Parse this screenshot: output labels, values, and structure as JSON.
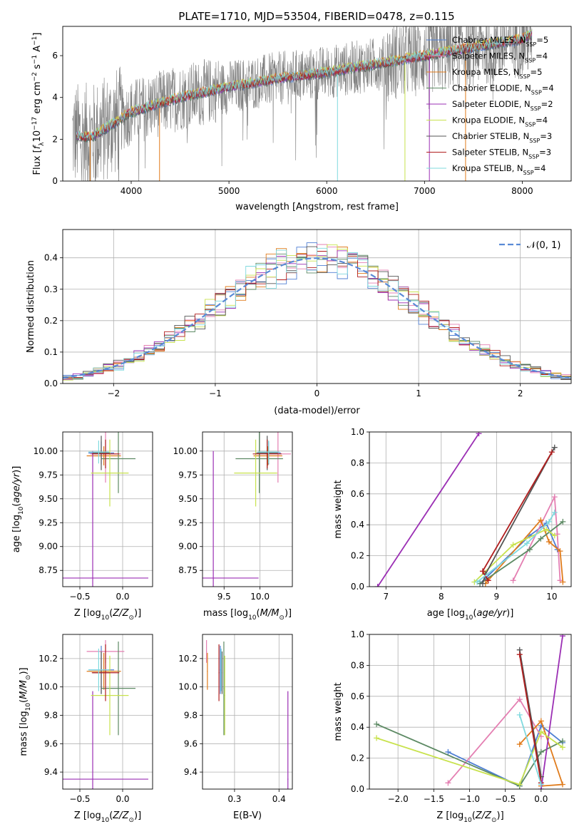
{
  "figure": {
    "title": "PLATE=1710, MJD=53504, FIBERID=0478, z=0.115"
  },
  "colors": {
    "Chabrier MILES": "#4f7fd3",
    "Salpeter MILES": "#e47fb2",
    "Kroupa MILES": "#e07b1b",
    "Chabrier ELODIE": "#5d8a64",
    "Salpeter ELODIE": "#9b2fb4",
    "Kroupa ELODIE": "#c8e24d",
    "Chabrier STELIB": "#555555",
    "Salpeter STELIB": "#b11e1e",
    "Kroupa STELIB": "#7fd9de",
    "data": "#808080",
    "normal": "#5a8ad6"
  },
  "legend": {
    "spectrum": [
      {
        "key": "Chabrier MILES",
        "imf": "Chabrier MILES, N",
        "n": "=5"
      },
      {
        "key": "Salpeter MILES",
        "imf": "Salpeter MILES, N",
        "n": "=4"
      },
      {
        "key": "Kroupa MILES",
        "imf": "Kroupa MILES, N",
        "n": "=5"
      },
      {
        "key": "Chabrier ELODIE",
        "imf": "Chabrier ELODIE, N",
        "n": "=4"
      },
      {
        "key": "Salpeter ELODIE",
        "imf": "Salpeter ELODIE, N",
        "n": "=2"
      },
      {
        "key": "Kroupa ELODIE",
        "imf": "Kroupa ELODIE, N",
        "n": "=4"
      },
      {
        "key": "Chabrier STELIB",
        "imf": "Chabrier STELIB, N",
        "n": "=3"
      },
      {
        "key": "Salpeter STELIB",
        "imf": "Salpeter STELIB, N",
        "n": "=3"
      },
      {
        "key": "Kroupa STELIB",
        "imf": "Kroupa STELIB, N",
        "n": "=4"
      }
    ],
    "ssp_subscript": "SSP",
    "hist": "𝒩(0, 1)"
  },
  "chart_data": [
    {
      "id": "spectrum",
      "type": "line",
      "title": "PLATE=1710, MJD=53504, FIBERID=0478, z=0.115",
      "xlabel": "wavelength [Angstrom, rest frame]",
      "ylabel": "Flux [f_λ 10^-17 erg cm^-2 s^-1 A^-1]",
      "xlim": [
        3300,
        8500
      ],
      "ylim": [
        0,
        7.4
      ],
      "xticks": [
        4000,
        5000,
        6000,
        7000,
        8000
      ],
      "yticks": [
        0,
        2,
        4,
        6
      ],
      "grid": false,
      "legend_position": "upper right",
      "continuum": [
        [
          3400,
          2.2
        ],
        [
          3600,
          2.1
        ],
        [
          3800,
          2.7
        ],
        [
          4000,
          3.3
        ],
        [
          4500,
          4.0
        ],
        [
          5000,
          4.5
        ],
        [
          5500,
          4.9
        ],
        [
          6000,
          5.2
        ],
        [
          6500,
          5.6
        ],
        [
          7000,
          6.0
        ],
        [
          7500,
          6.4
        ],
        [
          8000,
          6.8
        ],
        [
          8100,
          7.0
        ]
      ]
    },
    {
      "id": "residuals",
      "type": "line",
      "xlabel": "(data-model)/error",
      "ylabel": "Normed distribution",
      "xlim": [
        -2.5,
        2.5
      ],
      "ylim": [
        0,
        0.49
      ],
      "xticks": [
        -2,
        -1,
        0,
        1,
        2
      ],
      "yticks": [
        0.0,
        0.1,
        0.2,
        0.3,
        0.4
      ],
      "grid": true,
      "legend_position": "upper right",
      "series": [
        {
          "name": "𝒩(0, 1)",
          "style": "dashed",
          "function": "standard normal pdf"
        }
      ]
    },
    {
      "id": "age_vs_Z",
      "type": "scatter",
      "xlabel": "Z [log10(Z/Z⊙)]",
      "ylabel": "age  [log10(age/yr)]",
      "xlim": [
        -0.7,
        0.35
      ],
      "ylim": [
        8.58,
        10.2
      ],
      "xticks": [
        -0.5,
        0.0
      ],
      "yticks": [
        8.75,
        9.0,
        9.25,
        9.5,
        9.75,
        10.0
      ],
      "grid": true,
      "points": [
        {
          "key": "Chabrier MILES",
          "x": -0.25,
          "y": 9.98,
          "dx": 0.15,
          "dy": 0.12
        },
        {
          "key": "Salpeter MILES",
          "x": -0.2,
          "y": 9.97,
          "dx": 0.18,
          "dy": 0.3
        },
        {
          "key": "Kroupa MILES",
          "x": -0.22,
          "y": 9.95,
          "dx": 0.2,
          "dy": 0.1
        },
        {
          "key": "Chabrier ELODIE",
          "x": -0.05,
          "y": 9.92,
          "dx": 0.2,
          "dy": 0.36
        },
        {
          "key": "Salpeter ELODIE",
          "x": -0.35,
          "y": 8.67,
          "dx": 0.65,
          "dy": 1.33
        },
        {
          "key": "Kroupa ELODIE",
          "x": -0.15,
          "y": 9.77,
          "dx": 0.22,
          "dy": 0.35
        },
        {
          "key": "Chabrier STELIB",
          "x": -0.25,
          "y": 9.98,
          "dx": 0.1,
          "dy": 0.18
        },
        {
          "key": "Salpeter STELIB",
          "x": -0.2,
          "y": 9.97,
          "dx": 0.16,
          "dy": 0.15
        },
        {
          "key": "Kroupa STELIB",
          "x": -0.28,
          "y": 9.99,
          "dx": 0.12,
          "dy": 0.12
        }
      ]
    },
    {
      "id": "age_vs_mass",
      "type": "scatter",
      "xlabel": "mass [log10(M/M⊙)]",
      "ylabel": "",
      "xlim": [
        9.2,
        10.45
      ],
      "ylim": [
        8.58,
        10.2
      ],
      "xticks": [
        9.5,
        10.0
      ],
      "yticks": [
        8.75,
        9.0,
        9.25,
        9.5,
        9.75,
        10.0
      ],
      "grid": true,
      "points": [
        {
          "key": "Chabrier MILES",
          "x": 10.12,
          "y": 9.98,
          "dx": 0.17,
          "dy": 0.12
        },
        {
          "key": "Salpeter MILES",
          "x": 10.25,
          "y": 9.97,
          "dx": 0.18,
          "dy": 0.3
        },
        {
          "key": "Kroupa MILES",
          "x": 10.11,
          "y": 9.95,
          "dx": 0.2,
          "dy": 0.1
        },
        {
          "key": "Chabrier ELODIE",
          "x": 9.99,
          "y": 9.92,
          "dx": 0.33,
          "dy": 0.36
        },
        {
          "key": "Salpeter ELODIE",
          "x": 9.35,
          "y": 8.67,
          "dx": 0.63,
          "dy": 1.33
        },
        {
          "key": "Kroupa ELODIE",
          "x": 9.94,
          "y": 9.77,
          "dx": 0.3,
          "dy": 0.35
        },
        {
          "key": "Chabrier STELIB",
          "x": 10.1,
          "y": 9.98,
          "dx": 0.15,
          "dy": 0.18
        },
        {
          "key": "Salpeter STELIB",
          "x": 10.1,
          "y": 9.97,
          "dx": 0.2,
          "dy": 0.15
        },
        {
          "key": "Kroupa STELIB",
          "x": 10.12,
          "y": 9.99,
          "dx": 0.15,
          "dy": 0.12
        }
      ]
    },
    {
      "id": "weight_vs_age",
      "type": "line",
      "xlabel": "age  [log10(age/yr)]",
      "ylabel": "mass weight",
      "xlim": [
        6.7,
        10.35
      ],
      "ylim": [
        0.0,
        1.0
      ],
      "xticks": [
        7,
        8,
        9,
        10
      ],
      "yticks": [
        0.0,
        0.2,
        0.4,
        0.6,
        0.8,
        1.0
      ],
      "grid": true,
      "series": [
        {
          "key": "Chabrier MILES",
          "points": [
            [
              8.7,
              0.02
            ],
            [
              9.6,
              0.33
            ],
            [
              9.9,
              0.41
            ],
            [
              10.1,
              0.24
            ]
          ]
        },
        {
          "key": "Salpeter MILES",
          "points": [
            [
              9.3,
              0.04
            ],
            [
              10.05,
              0.58
            ],
            [
              10.1,
              0.34
            ],
            [
              10.15,
              0.04
            ]
          ]
        },
        {
          "key": "Kroupa MILES",
          "points": [
            [
              8.8,
              0.02
            ],
            [
              9.8,
              0.43
            ],
            [
              9.95,
              0.29
            ],
            [
              10.15,
              0.23
            ],
            [
              10.2,
              0.03
            ]
          ]
        },
        {
          "key": "Chabrier ELODIE",
          "points": [
            [
              8.7,
              0.02
            ],
            [
              9.6,
              0.24
            ],
            [
              9.8,
              0.31
            ],
            [
              10.2,
              0.42
            ]
          ]
        },
        {
          "key": "Salpeter ELODIE",
          "points": [
            [
              6.85,
              0.0
            ],
            [
              8.68,
              0.99
            ]
          ]
        },
        {
          "key": "Kroupa ELODIE",
          "points": [
            [
              8.6,
              0.03
            ],
            [
              9.3,
              0.27
            ],
            [
              9.9,
              0.37
            ],
            [
              10.05,
              0.33
            ]
          ]
        },
        {
          "key": "Chabrier STELIB",
          "points": [
            [
              8.75,
              0.02
            ],
            [
              8.8,
              0.08
            ],
            [
              10.05,
              0.9
            ]
          ]
        },
        {
          "key": "Salpeter STELIB",
          "points": [
            [
              8.85,
              0.04
            ],
            [
              8.75,
              0.1
            ],
            [
              10.0,
              0.87
            ]
          ]
        },
        {
          "key": "Kroupa STELIB",
          "points": [
            [
              8.65,
              0.03
            ],
            [
              9.55,
              0.28
            ],
            [
              9.95,
              0.42
            ],
            [
              10.05,
              0.48
            ]
          ]
        }
      ]
    },
    {
      "id": "mass_vs_Z",
      "type": "scatter",
      "xlabel": "Z [log10(Z/Z⊙)]",
      "ylabel": "mass [log10(M/M⊙)]",
      "xlim": [
        -0.7,
        0.35
      ],
      "ylim": [
        9.28,
        10.37
      ],
      "xticks": [
        -0.5,
        0.0
      ],
      "yticks": [
        9.4,
        9.6,
        9.8,
        10.0,
        10.2
      ],
      "grid": true,
      "points": [
        {
          "key": "Chabrier MILES",
          "x": -0.25,
          "y": 10.12,
          "dx": 0.15,
          "dy": 0.17
        },
        {
          "key": "Salpeter MILES",
          "x": -0.2,
          "y": 10.25,
          "dx": 0.22,
          "dy": 0.08
        },
        {
          "key": "Kroupa MILES",
          "x": -0.22,
          "y": 10.11,
          "dx": 0.2,
          "dy": 0.13
        },
        {
          "key": "Chabrier ELODIE",
          "x": -0.05,
          "y": 9.99,
          "dx": 0.2,
          "dy": 0.33
        },
        {
          "key": "Salpeter ELODIE",
          "x": -0.35,
          "y": 9.35,
          "dx": 0.65,
          "dy": 0.62
        },
        {
          "key": "Kroupa ELODIE",
          "x": -0.15,
          "y": 9.94,
          "dx": 0.22,
          "dy": 0.28
        },
        {
          "key": "Chabrier STELIB",
          "x": -0.25,
          "y": 10.1,
          "dx": 0.1,
          "dy": 0.15
        },
        {
          "key": "Salpeter STELIB",
          "x": -0.2,
          "y": 10.1,
          "dx": 0.16,
          "dy": 0.2
        },
        {
          "key": "Kroupa STELIB",
          "x": -0.28,
          "y": 10.12,
          "dx": 0.12,
          "dy": 0.15
        }
      ]
    },
    {
      "id": "mass_vs_ebv",
      "type": "scatter",
      "xlabel": "E(B-V)",
      "ylabel": "",
      "xlim": [
        0.228,
        0.43
      ],
      "ylim": [
        9.28,
        10.37
      ],
      "xticks": [
        0.3,
        0.4
      ],
      "yticks": [
        9.4,
        9.6,
        9.8,
        10.0,
        10.2
      ],
      "grid": true,
      "points": [
        {
          "key": "Chabrier MILES",
          "x": 0.268,
          "y": 10.12,
          "dx": 0.001,
          "dy": 0.17
        },
        {
          "key": "Salpeter MILES",
          "x": 0.237,
          "y": 10.25,
          "dx": 0.001,
          "dy": 0.08
        },
        {
          "key": "Kroupa MILES",
          "x": 0.239,
          "y": 10.11,
          "dx": 0.001,
          "dy": 0.13
        },
        {
          "key": "Chabrier ELODIE",
          "x": 0.276,
          "y": 9.99,
          "dx": 0.001,
          "dy": 0.33
        },
        {
          "key": "Salpeter ELODIE",
          "x": 0.42,
          "y": 9.35,
          "dx": 0.001,
          "dy": 0.62
        },
        {
          "key": "Kroupa ELODIE",
          "x": 0.278,
          "y": 9.94,
          "dx": 0.001,
          "dy": 0.28
        },
        {
          "key": "Chabrier STELIB",
          "x": 0.272,
          "y": 10.1,
          "dx": 0.001,
          "dy": 0.15
        },
        {
          "key": "Salpeter STELIB",
          "x": 0.265,
          "y": 10.1,
          "dx": 0.001,
          "dy": 0.2
        },
        {
          "key": "Kroupa STELIB",
          "x": 0.27,
          "y": 10.12,
          "dx": 0.001,
          "dy": 0.15
        }
      ]
    },
    {
      "id": "weight_vs_Z",
      "type": "line",
      "xlabel": "Z [log10(Z/Z⊙)]",
      "ylabel": "mass weight",
      "xlim": [
        -2.4,
        0.42
      ],
      "ylim": [
        0.0,
        1.0
      ],
      "xticks": [
        -2.0,
        -1.5,
        -1.0,
        -0.5,
        0.0
      ],
      "yticks": [
        0.0,
        0.2,
        0.4,
        0.6,
        0.8,
        1.0
      ],
      "grid": true,
      "series": [
        {
          "key": "Chabrier MILES",
          "points": [
            [
              -1.3,
              0.24
            ],
            [
              -0.3,
              0.02
            ],
            [
              0.0,
              0.41
            ],
            [
              0.3,
              0.3
            ]
          ]
        },
        {
          "key": "Salpeter MILES",
          "points": [
            [
              -1.3,
              0.04
            ],
            [
              -0.3,
              0.58
            ],
            [
              0.0,
              0.34
            ]
          ]
        },
        {
          "key": "Kroupa MILES",
          "points": [
            [
              -0.3,
              0.29
            ],
            [
              0.0,
              0.44
            ],
            [
              0.3,
              0.03
            ],
            [
              0.0,
              0.02
            ]
          ]
        },
        {
          "key": "Chabrier ELODIE",
          "points": [
            [
              -2.3,
              0.42
            ],
            [
              -0.3,
              0.02
            ],
            [
              0.0,
              0.24
            ],
            [
              0.3,
              0.31
            ]
          ]
        },
        {
          "key": "Salpeter ELODIE",
          "points": [
            [
              0.0,
              0.0
            ],
            [
              0.3,
              0.99
            ]
          ]
        },
        {
          "key": "Kroupa ELODIE",
          "points": [
            [
              -2.3,
              0.33
            ],
            [
              -0.3,
              0.03
            ],
            [
              0.0,
              0.37
            ],
            [
              0.3,
              0.27
            ]
          ]
        },
        {
          "key": "Chabrier STELIB",
          "points": [
            [
              -0.3,
              0.9
            ],
            [
              0.0,
              0.08
            ]
          ]
        },
        {
          "key": "Salpeter STELIB",
          "points": [
            [
              -0.3,
              0.87
            ],
            [
              0.0,
              0.04
            ]
          ]
        },
        {
          "key": "Kroupa STELIB",
          "points": [
            [
              -0.3,
              0.48
            ],
            [
              0.0,
              0.03
            ]
          ]
        }
      ]
    }
  ]
}
